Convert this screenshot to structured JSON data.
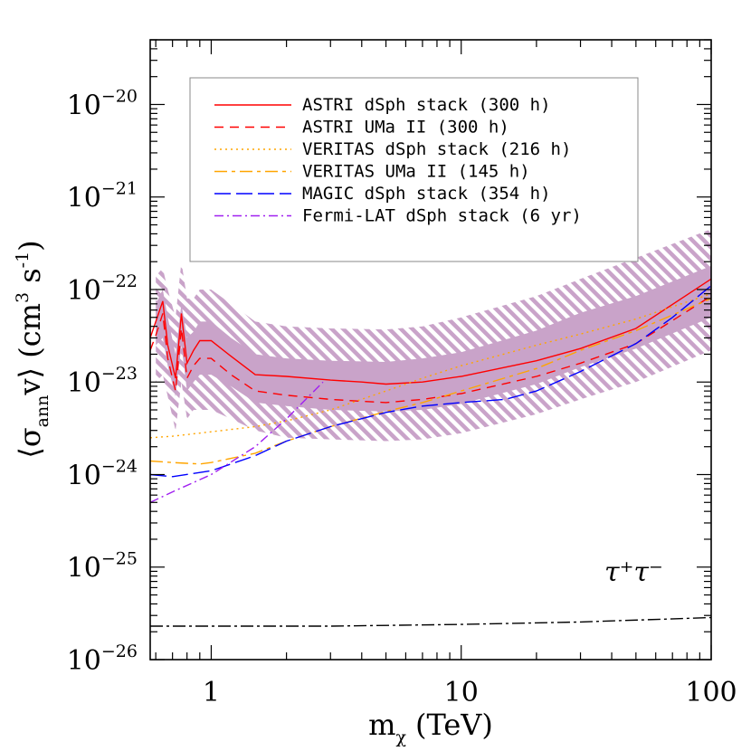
{
  "chart_data": {
    "type": "line",
    "xlabel": "m",
    "xlabel_sub": "χ",
    "xlabel_unit": "(TeV)",
    "ylabel": "⟨σ",
    "ylabel_sub": "ann",
    "ylabel_rest": "v⟩ (cm",
    "ylabel_sup3": "3",
    "ylabel_s": " s",
    "ylabel_supm1": "-1",
    "ylabel_close": ")",
    "x_scale": "log",
    "y_scale": "log",
    "xlim": [
      0.57,
      100
    ],
    "ylim": [
      1e-26,
      5e-20
    ],
    "x_tick_labels": [
      {
        "value": 1,
        "label": "1"
      },
      {
        "value": 10,
        "label": "10"
      },
      {
        "value": 100,
        "label": "100"
      }
    ],
    "y_tick_labels": [
      {
        "exp": -20,
        "base": "10",
        "sup": "−20"
      },
      {
        "exp": -21,
        "base": "10",
        "sup": "−21"
      },
      {
        "exp": -22,
        "base": "10",
        "sup": "−22"
      },
      {
        "exp": -23,
        "base": "10",
        "sup": "−23"
      },
      {
        "exp": -24,
        "base": "10",
        "sup": "−24"
      },
      {
        "exp": -25,
        "base": "10",
        "sup": "−25"
      },
      {
        "exp": -26,
        "base": "10",
        "sup": "−26"
      }
    ],
    "annotation": "τ⁺τ⁻",
    "legend_position": "top",
    "band": {
      "color": "#c9a3c9",
      "x": [
        0.6,
        0.64,
        0.67,
        0.72,
        0.76,
        0.8,
        0.85,
        0.9,
        1.0,
        1.2,
        1.5,
        2.0,
        3.0,
        5.0,
        7.0,
        10.0,
        20.0,
        30.0,
        50.0,
        100.0
      ],
      "inner_hi": [
        7e-23,
        1e-22,
        5e-23,
        2e-23,
        7e-23,
        3e-23,
        3.5e-23,
        4.5e-23,
        4.5e-23,
        3e-23,
        2e-23,
        1.8e-23,
        1.7e-23,
        1.65e-23,
        1.8e-23,
        2.1e-23,
        3.6e-23,
        5.6e-23,
        8.5e-23,
        1.8e-22
      ],
      "inner_lo": [
        2.5e-23,
        3e-23,
        1.5e-23,
        7e-24,
        2.5e-23,
        8e-24,
        1e-23,
        1.2e-23,
        1.2e-23,
        9e-24,
        6e-24,
        5.5e-24,
        5e-24,
        4.8e-24,
        5e-24,
        5.8e-24,
        9.5e-24,
        1.45e-23,
        2.3e-23,
        5e-23
      ],
      "outer_hi": [
        1.4e-22,
        1.7e-22,
        1e-22,
        5e-23,
        2e-22,
        8e-23,
        8e-23,
        1e-22,
        1e-22,
        7e-23,
        4.5e-23,
        4e-23,
        3.8e-23,
        3.7e-23,
        4e-23,
        5e-23,
        8.5e-23,
        1.3e-22,
        2.2e-22,
        4.5e-22
      ],
      "outer_lo": [
        1e-23,
        1.2e-23,
        7e-24,
        3e-24,
        1e-23,
        4e-24,
        5e-24,
        5e-24,
        5e-24,
        4e-24,
        3e-24,
        2.5e-24,
        2.4e-24,
        2.3e-24,
        2.4e-24,
        2.8e-24,
        4.5e-24,
        6.5e-24,
        1e-23,
        2.2e-23
      ]
    },
    "series": [
      {
        "name": "ASTRI dSph stack (300 h)",
        "color": "#ff0000",
        "dash": "",
        "x": [
          0.57,
          0.6,
          0.64,
          0.67,
          0.72,
          0.76,
          0.8,
          0.85,
          0.9,
          1.0,
          1.2,
          1.5,
          2.0,
          3.0,
          4.0,
          5.0,
          7.0,
          10.0,
          20.0,
          30.0,
          50.0,
          100.0
        ],
        "y": [
          3e-23,
          4.5e-23,
          7.5e-23,
          2.5e-23,
          1.1e-23,
          5.5e-23,
          1.6e-23,
          2.2e-23,
          2.8e-23,
          2.8e-23,
          1.9e-23,
          1.2e-23,
          1.15e-23,
          1.05e-23,
          1e-23,
          9.5e-24,
          1e-23,
          1.15e-23,
          1.7e-23,
          2.3e-23,
          3.8e-23,
          1.3e-22
        ]
      },
      {
        "name": "ASTRI UMa II (300 h)",
        "color": "#ff0000",
        "dash": "10,7",
        "x": [
          0.57,
          0.6,
          0.64,
          0.67,
          0.72,
          0.76,
          0.8,
          0.85,
          0.9,
          1.0,
          1.2,
          1.5,
          2.0,
          3.0,
          4.0,
          5.0,
          7.0,
          10.0,
          20.0,
          30.0,
          50.0,
          100.0
        ],
        "y": [
          2.2e-23,
          3.2e-23,
          5.5e-23,
          1.8e-23,
          8e-24,
          3.8e-23,
          1.1e-23,
          1.5e-23,
          1.8e-23,
          1.8e-23,
          1.2e-23,
          8e-24,
          7.2e-24,
          6.5e-24,
          6.2e-24,
          6e-24,
          6.5e-24,
          7.5e-24,
          1.15e-23,
          1.6e-23,
          2.6e-23,
          8.5e-23
        ]
      },
      {
        "name": "VERITAS dSph stack (216 h)",
        "color": "#ffa500",
        "dash": "2,4",
        "x": [
          0.57,
          0.7,
          1.0,
          1.5,
          2.0,
          3.0,
          5.0,
          7.0,
          10.0,
          20.0,
          30.0,
          50.0,
          100.0
        ],
        "y": [
          2.5e-24,
          2.6e-24,
          2.9e-24,
          3.3e-24,
          3.8e-24,
          5e-24,
          8e-24,
          1.1e-23,
          1.5e-23,
          2.5e-23,
          3.3e-23,
          4.8e-23,
          9e-23
        ]
      },
      {
        "name": "VERITAS UMa II (145 h)",
        "color": "#ffa500",
        "dash": "14,5,4,5",
        "x": [
          0.57,
          0.7,
          0.9,
          1.0,
          1.5,
          2.0,
          3.0,
          5.0,
          7.0,
          10.0,
          20.0,
          30.0,
          50.0,
          100.0
        ],
        "y": [
          1.4e-24,
          1.35e-24,
          1.3e-24,
          1.35e-24,
          1.7e-24,
          2.3e-24,
          3.3e-24,
          4.8e-24,
          6e-24,
          8e-24,
          1.4e-23,
          2.2e-23,
          3.6e-23,
          8e-23
        ]
      },
      {
        "name": "MAGIC dSph stack (354 h)",
        "color": "#0000ff",
        "dash": "18,6",
        "x": [
          0.57,
          0.7,
          1.0,
          1.5,
          2.0,
          3.0,
          5.0,
          7.0,
          10.0,
          15.0,
          20.0,
          30.0,
          50.0,
          70.0,
          100.0
        ],
        "y": [
          1e-24,
          9.5e-25,
          1.1e-24,
          1.6e-24,
          2.3e-24,
          3.3e-24,
          4.7e-24,
          5.5e-24,
          6e-24,
          6.5e-24,
          8e-24,
          1.3e-23,
          2.6e-23,
          5e-23,
          1.1e-22
        ]
      },
      {
        "name": "Fermi-LAT dSph stack (6 yr)",
        "color": "#a020f0",
        "dash": "10,4,2,4",
        "x": [
          0.57,
          0.7,
          1.0,
          1.5,
          2.0,
          2.8
        ],
        "y": [
          5e-25,
          6.5e-25,
          1e-24,
          2e-24,
          4e-24,
          1e-23
        ]
      },
      {
        "name": "",
        "color": "#000000",
        "dash": "14,4,3,4",
        "x": [
          0.57,
          1.0,
          3.0,
          10.0,
          30.0,
          100.0
        ],
        "y": [
          2.3e-26,
          2.3e-26,
          2.3e-26,
          2.4e-26,
          2.55e-26,
          2.85e-26
        ]
      }
    ]
  }
}
